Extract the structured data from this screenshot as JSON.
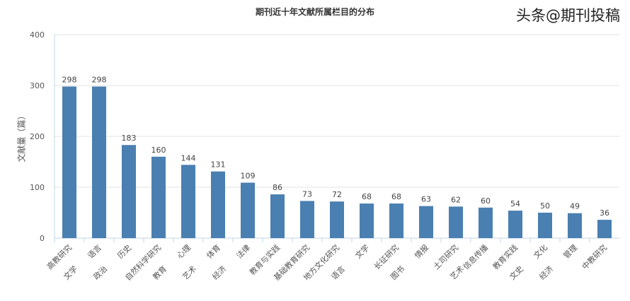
{
  "chart_data": {
    "type": "bar",
    "title": "期刊近十年文献所属栏目的分布",
    "ylabel": "文献量（篇）",
    "xlabel": "",
    "ylim": [
      0,
      400
    ],
    "yticks": [
      0,
      100,
      200,
      300,
      400
    ],
    "grid": true,
    "categories": [
      "高教研究",
      "语言",
      "历史",
      "自然科学研究",
      "心理",
      "体育",
      "法律",
      "教育与实践",
      "基础教育研究",
      "地方文化研究",
      "文学",
      "长征研究",
      "情报",
      "土司研究",
      "信息传播",
      "教育实践",
      "文化",
      "管理",
      "中教研究"
    ],
    "categories_second_line": [
      "文学",
      "政治",
      "",
      "教育",
      "艺术",
      "经济",
      "",
      "",
      "",
      "语言",
      "",
      "图书",
      "",
      "艺术",
      "",
      "文史",
      "经济",
      "",
      ""
    ],
    "values": [
      298,
      298,
      183,
      160,
      144,
      131,
      109,
      86,
      73,
      72,
      68,
      68,
      63,
      62,
      60,
      54,
      50,
      49,
      36
    ],
    "bar_color": "#4a7fb1"
  },
  "watermark": "头条@期刊投稿"
}
